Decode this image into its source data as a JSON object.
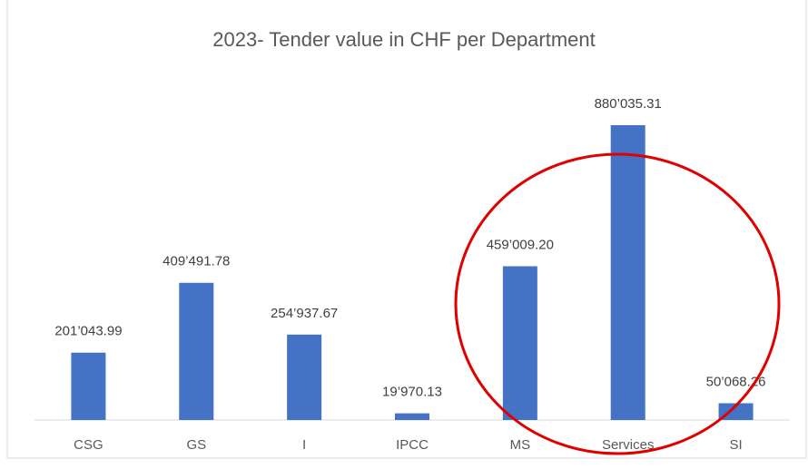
{
  "chart_data": {
    "type": "bar",
    "title": "2023- Tender value in CHF per Department",
    "categories": [
      "CSG",
      "GS",
      "I",
      "IPCC",
      "MS",
      "Services",
      "SI"
    ],
    "values": [
      201043.99,
      409491.78,
      254937.67,
      19970.13,
      459009.2,
      880035.31,
      50068.26
    ],
    "value_labels": [
      "201’043.99",
      "409’491.78",
      "254’937.67",
      "19’970.13",
      "459’009.20",
      "880’035.31",
      "50’068.26"
    ],
    "color": "#4472c4"
  }
}
